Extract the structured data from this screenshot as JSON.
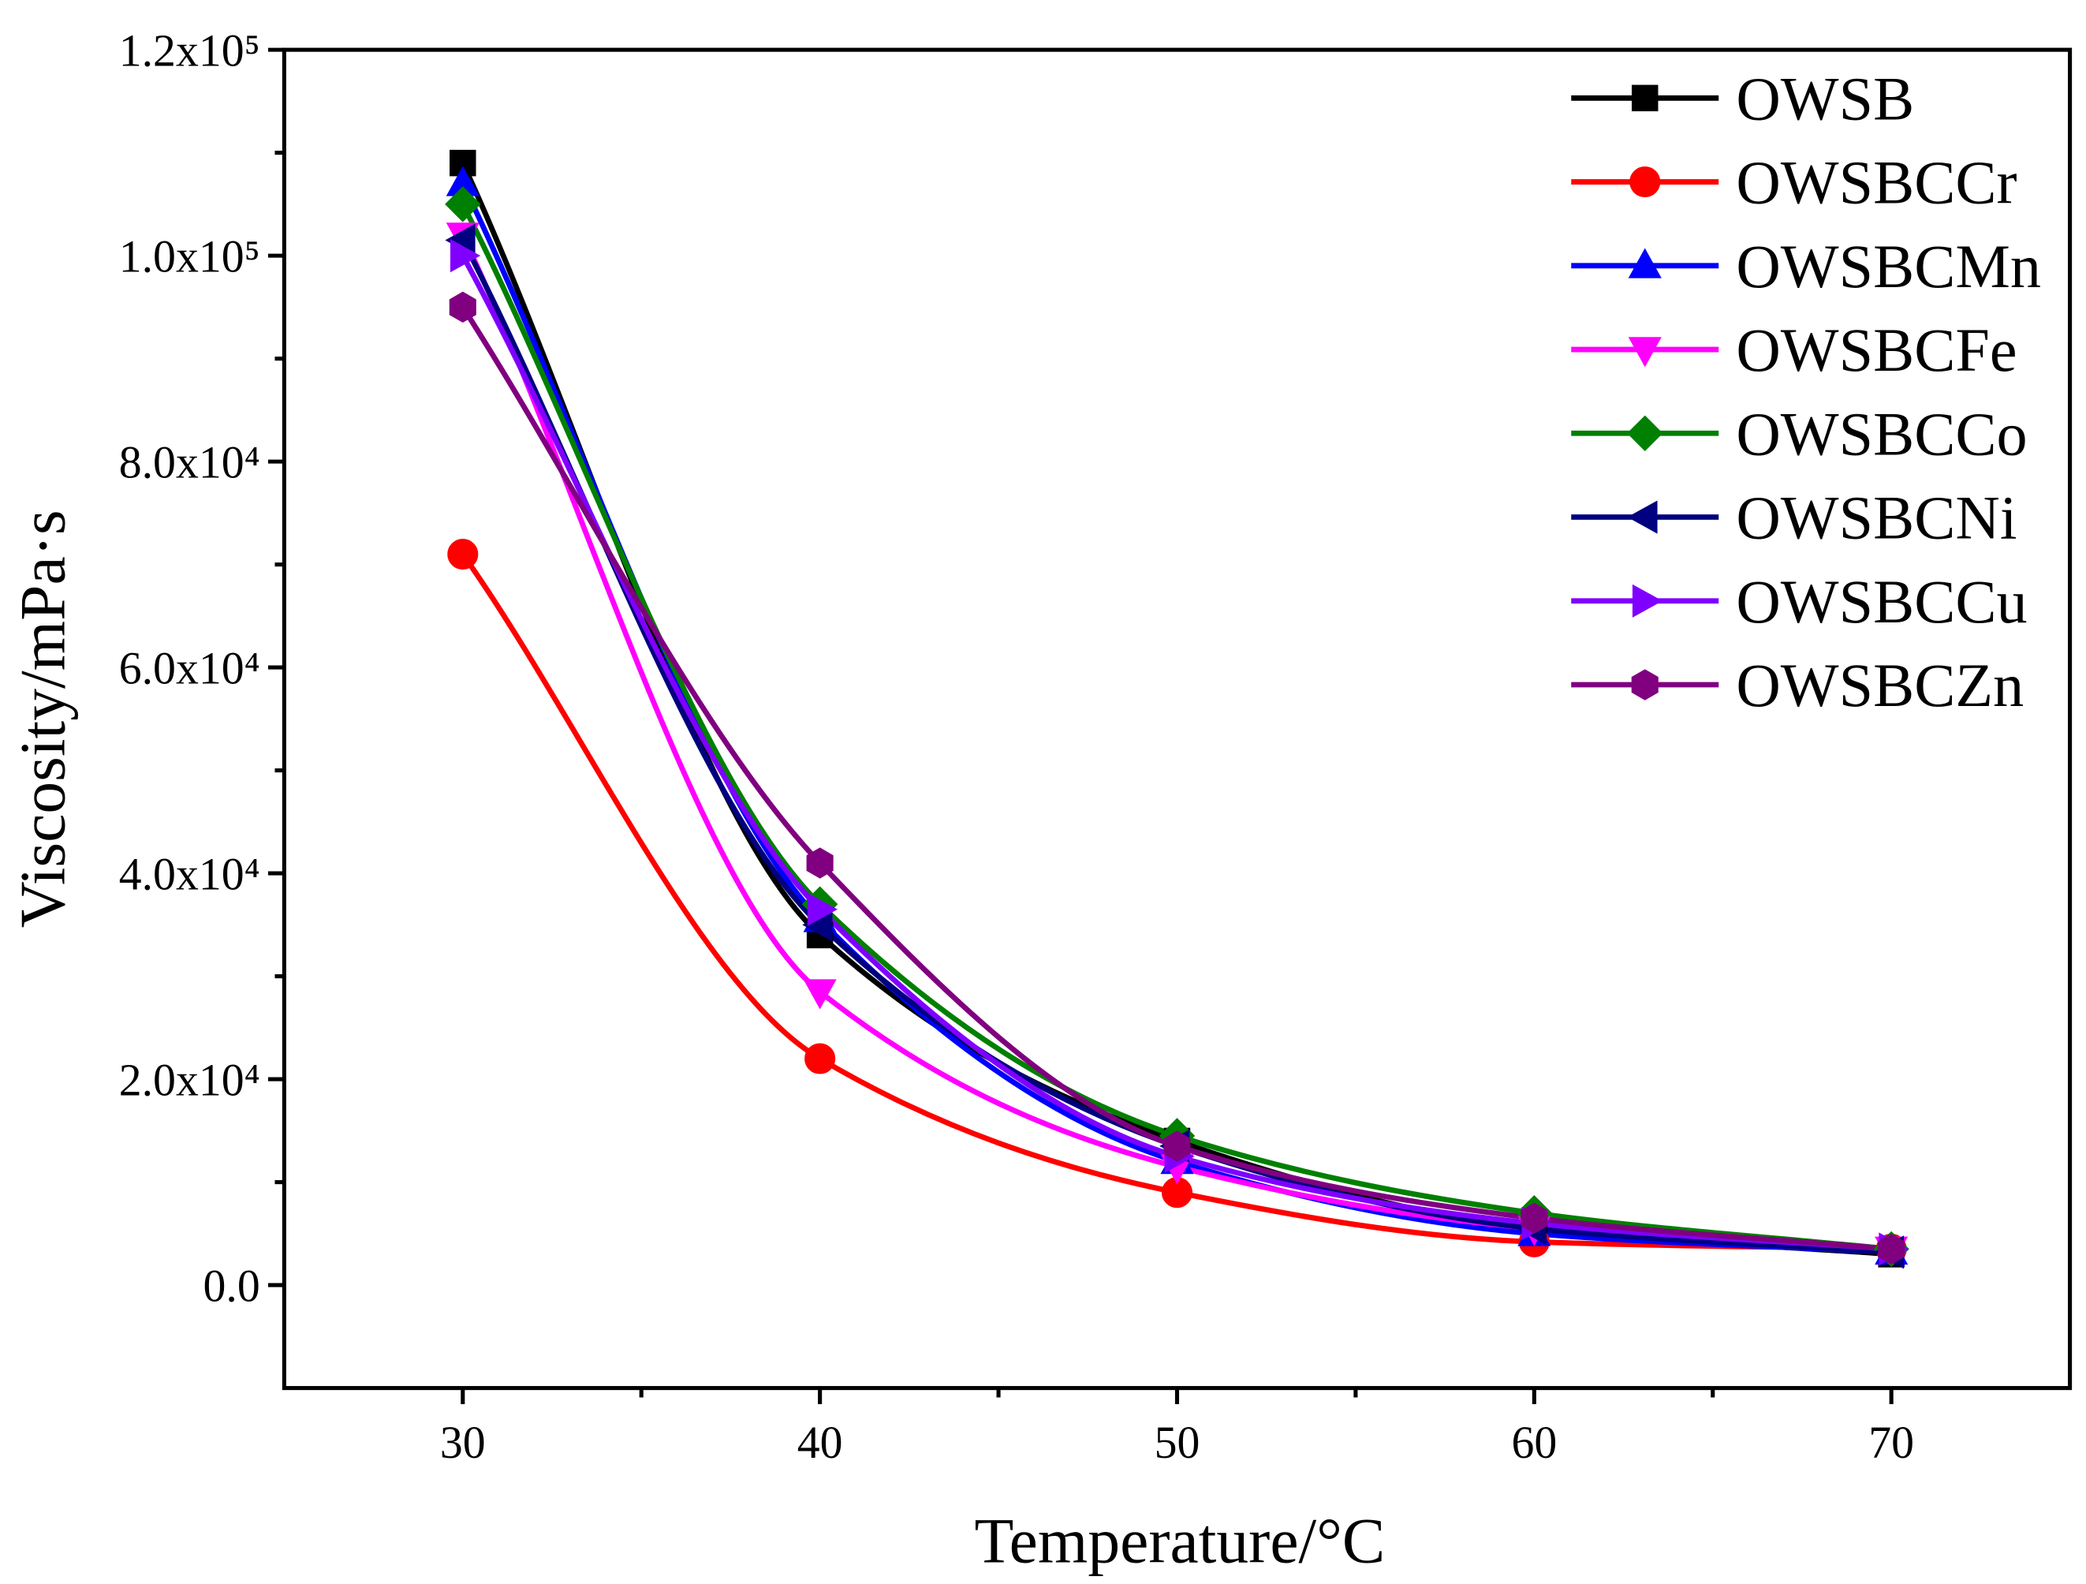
{
  "chart_data": {
    "type": "line",
    "x_label": "Temperature/°C",
    "y_label": "Viscosity/mPa·s",
    "x": [
      30,
      40,
      50,
      60,
      70
    ],
    "xlim": [
      25,
      75
    ],
    "xticks": [
      30,
      40,
      50,
      60,
      70
    ],
    "xminorticks": [
      35,
      45,
      55,
      65
    ],
    "ylim": [
      -10000,
      120000
    ],
    "yticks": [
      {
        "value": 0,
        "label": "0.0"
      },
      {
        "value": 20000,
        "label": "2.0x10⁴"
      },
      {
        "value": 40000,
        "label": "4.0x10⁴"
      },
      {
        "value": 60000,
        "label": "6.0x10⁴"
      },
      {
        "value": 80000,
        "label": "8.0x10⁴"
      },
      {
        "value": 100000,
        "label": "1.0x10⁵"
      },
      {
        "value": 120000,
        "label": "1.2x10⁵"
      }
    ],
    "yminorticks": [
      10000,
      30000,
      50000,
      70000,
      90000,
      110000
    ],
    "legend": "upper right",
    "series": [
      {
        "name": "OWSB",
        "color": "#000000",
        "marker": "square",
        "values": [
          109000,
          34000,
          14000,
          5500,
          3000
        ]
      },
      {
        "name": "OWSBCCr",
        "color": "#ff0000",
        "marker": "circle",
        "values": [
          71000,
          22000,
          9000,
          4200,
          3500
        ]
      },
      {
        "name": "OWSBCMn",
        "color": "#0000ff",
        "marker": "triangle-up",
        "values": [
          107000,
          35500,
          12000,
          5000,
          3200
        ]
      },
      {
        "name": "OWSBCFe",
        "color": "#ff00ff",
        "marker": "triangle-down",
        "values": [
          102000,
          28500,
          11500,
          5500,
          3500
        ]
      },
      {
        "name": "OWSBCCo",
        "color": "#008000",
        "marker": "diamond",
        "values": [
          105000,
          37000,
          14500,
          7000,
          3500
        ]
      },
      {
        "name": "OWSBCNi",
        "color": "#000080",
        "marker": "triangle-left",
        "values": [
          101500,
          35000,
          13500,
          5500,
          3200
        ]
      },
      {
        "name": "OWSBCCu",
        "color": "#8000ff",
        "marker": "triangle-right",
        "values": [
          100000,
          36500,
          12500,
          6000,
          3500
        ]
      },
      {
        "name": "OWSBCZn",
        "color": "#800080",
        "marker": "hexagon",
        "values": [
          95000,
          41000,
          13500,
          6500,
          3500
        ]
      }
    ]
  }
}
